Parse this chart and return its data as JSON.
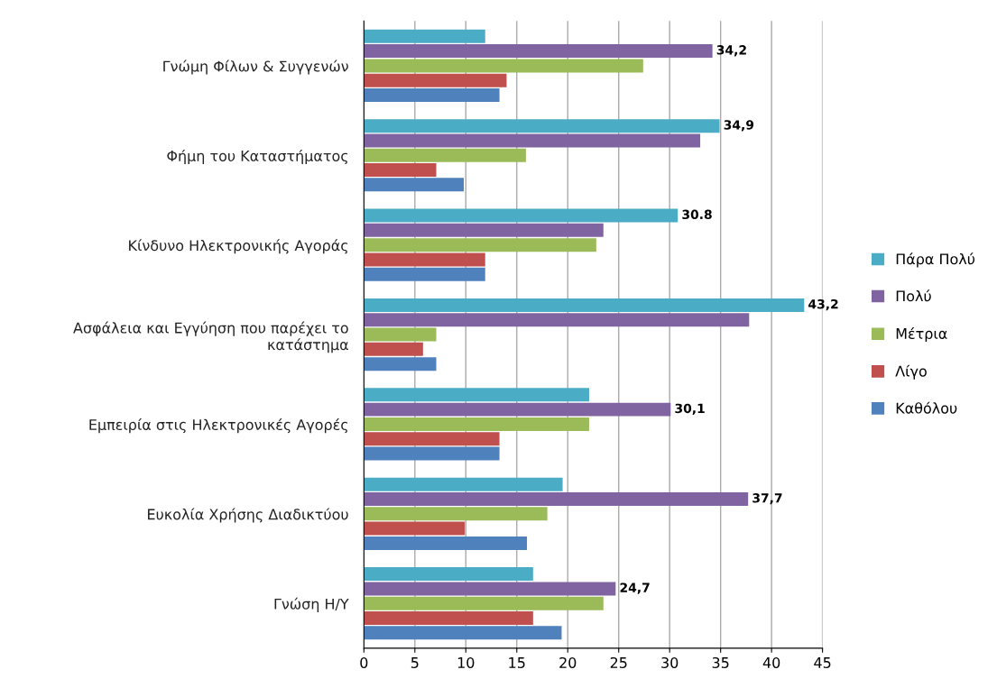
{
  "chart_data": {
    "type": "bar",
    "orientation": "horizontal",
    "categories": [
      "Γνώμη Φίλων & Συγγενών",
      "Φήμη του Καταστήματος",
      "Κίνδυνο Ηλεκτρονικής Αγοράς",
      "Ασφάλεια και Εγγύηση που παρέχει το\nκατάστημα",
      "Εμπειρία στις Ηλεκτρονικές Αγορές",
      "Ευκολία Χρήσης Διαδικτύου",
      "Γνώση Η/Υ"
    ],
    "series": [
      {
        "name": "Πάρα Πολύ",
        "color": "#4bacc6",
        "values": [
          11.9,
          34.9,
          30.8,
          43.2,
          22.1,
          19.5,
          16.6
        ],
        "value_labels": [
          null,
          "34,9",
          "30.8",
          "43,2",
          null,
          null,
          null
        ]
      },
      {
        "name": "Πολύ",
        "color": "#8064a2",
        "values": [
          34.2,
          33.0,
          23.5,
          37.8,
          30.1,
          37.7,
          24.7
        ],
        "value_labels": [
          "34,2",
          null,
          null,
          null,
          "30,1",
          "37,7",
          "24,7"
        ]
      },
      {
        "name": "Μέτρια",
        "color": "#9bbb59",
        "values": [
          27.4,
          15.9,
          22.8,
          7.1,
          22.1,
          18.0,
          23.5
        ]
      },
      {
        "name": "Λίγο",
        "color": "#c0504d",
        "values": [
          14.0,
          7.1,
          11.9,
          5.8,
          13.3,
          9.9,
          16.6
        ]
      },
      {
        "name": "Καθόλου",
        "color": "#4f81bd",
        "values": [
          13.3,
          9.8,
          11.9,
          7.1,
          13.3,
          16.0,
          19.4
        ]
      }
    ],
    "xlim": [
      0,
      45
    ],
    "xticks": [
      0,
      5,
      10,
      15,
      20,
      25,
      30,
      35,
      40,
      45
    ],
    "grid": "x",
    "legend": "right"
  }
}
